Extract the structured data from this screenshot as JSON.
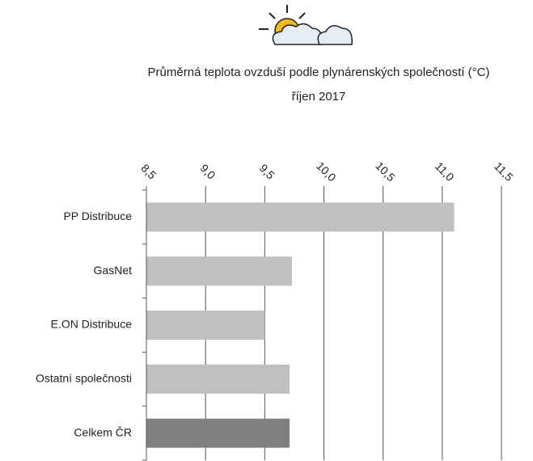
{
  "chart_data": {
    "type": "bar",
    "orientation": "horizontal",
    "title": "Průměrná teplota ovzduší podle plynárenských společností (°C)",
    "subtitle": "říjen  2017",
    "categories": [
      "PP Distribuce",
      "GasNet",
      "E.ON Distribuce",
      "Ostatní společnosti",
      "Celkem ČR"
    ],
    "values": [
      11.1,
      9.73,
      9.5,
      9.71,
      9.71
    ],
    "colors": [
      "#c0c0c0",
      "#c0c0c0",
      "#c0c0c0",
      "#c0c0c0",
      "#808080"
    ],
    "xlim": [
      8.5,
      11.5
    ],
    "xticks": [
      {
        "value": 8.5,
        "label": "8,5"
      },
      {
        "value": 9.0,
        "label": "9,0"
      },
      {
        "value": 9.5,
        "label": "9,5"
      },
      {
        "value": 10.0,
        "label": "10,0"
      },
      {
        "value": 10.5,
        "label": "10,5"
      },
      {
        "value": 11.0,
        "label": "11,0"
      },
      {
        "value": 11.5,
        "label": "11,5"
      }
    ],
    "grid": true
  }
}
